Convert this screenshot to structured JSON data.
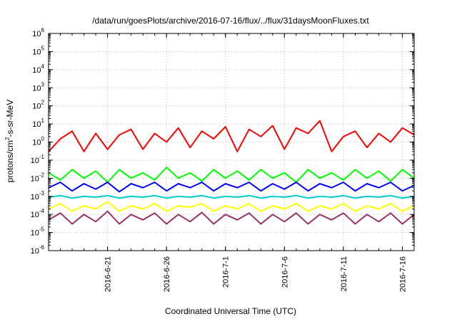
{
  "chart_data": {
    "type": "line",
    "title": "/data/run/goesPlots/archive/2016-07-16/flux/../flux/31daysMoonFluxes.txt",
    "xlabel": "Coordinated Universal Time (UTC)",
    "ylabel": {
      "base": "protons/cm",
      "exp": "2",
      "rest": "-s-sr-MeV"
    },
    "yscale": "log",
    "ylim": [
      1e-06,
      1000000.0
    ],
    "y_ticks": [
      {
        "base": "10",
        "exp": "-6",
        "value": 1e-06
      },
      {
        "base": "10",
        "exp": "-5",
        "value": 1e-05
      },
      {
        "base": "10",
        "exp": "-4",
        "value": 0.0001
      },
      {
        "base": "10",
        "exp": "-3",
        "value": 0.001
      },
      {
        "base": "10",
        "exp": "-2",
        "value": 0.01
      },
      {
        "base": "10",
        "exp": "-1",
        "value": 0.1
      },
      {
        "base": "10",
        "exp": "0",
        "value": 1
      },
      {
        "base": "10",
        "exp": "1",
        "value": 10
      },
      {
        "base": "10",
        "exp": "2",
        "value": 100
      },
      {
        "base": "10",
        "exp": "3",
        "value": 1000
      },
      {
        "base": "10",
        "exp": "4",
        "value": 10000
      },
      {
        "base": "10",
        "exp": "5",
        "value": 100000
      },
      {
        "base": "10",
        "exp": "6",
        "value": 1000000
      }
    ],
    "xlim": [
      "2016-06-16",
      "2016-07-17"
    ],
    "x_ticks": [
      "2016-6-21",
      "2016-6-26",
      "2016-7-1",
      "2016-7-6",
      "2016-7-11",
      "2016-7-16"
    ],
    "grid": true,
    "series": [
      {
        "color": "#ff0000",
        "x": [
          "2016-06-16",
          "2016-06-17",
          "2016-06-18",
          "2016-06-19",
          "2016-06-20",
          "2016-06-21",
          "2016-06-22",
          "2016-06-23",
          "2016-06-24",
          "2016-06-25",
          "2016-06-26",
          "2016-06-27",
          "2016-06-28",
          "2016-06-29",
          "2016-06-30",
          "2016-07-01",
          "2016-07-02",
          "2016-07-03",
          "2016-07-04",
          "2016-07-05",
          "2016-07-06",
          "2016-07-07",
          "2016-07-08",
          "2016-07-09",
          "2016-07-10",
          "2016-07-11",
          "2016-07-12",
          "2016-07-13",
          "2016-07-14",
          "2016-07-15",
          "2016-07-16",
          "2016-07-17"
        ],
        "y": [
          0.3,
          1.5,
          4.0,
          0.3,
          3.0,
          0.4,
          2.5,
          5.0,
          0.4,
          3.0,
          1.0,
          6.0,
          0.5,
          4.0,
          1.5,
          7.0,
          0.3,
          5.0,
          2.0,
          8.0,
          0.4,
          6.0,
          3.0,
          15.0,
          0.3,
          2.0,
          4.0,
          0.5,
          3.0,
          1.0,
          6.0,
          2.5
        ]
      },
      {
        "color": "#00ff00",
        "x": [
          "2016-06-16",
          "2016-06-17",
          "2016-06-18",
          "2016-06-19",
          "2016-06-20",
          "2016-06-21",
          "2016-06-22",
          "2016-06-23",
          "2016-06-24",
          "2016-06-25",
          "2016-06-26",
          "2016-06-27",
          "2016-06-28",
          "2016-06-29",
          "2016-06-30",
          "2016-07-01",
          "2016-07-02",
          "2016-07-03",
          "2016-07-04",
          "2016-07-05",
          "2016-07-06",
          "2016-07-07",
          "2016-07-08",
          "2016-07-09",
          "2016-07-10",
          "2016-07-11",
          "2016-07-12",
          "2016-07-13",
          "2016-07-14",
          "2016-07-15",
          "2016-07-16",
          "2016-07-17"
        ],
        "y": [
          0.02,
          0.008,
          0.03,
          0.01,
          0.025,
          0.006,
          0.03,
          0.01,
          0.02,
          0.008,
          0.04,
          0.01,
          0.02,
          0.007,
          0.03,
          0.01,
          0.025,
          0.008,
          0.03,
          0.01,
          0.02,
          0.006,
          0.03,
          0.01,
          0.02,
          0.008,
          0.03,
          0.01,
          0.025,
          0.007,
          0.03,
          0.01
        ]
      },
      {
        "color": "#0000ff",
        "x": [
          "2016-06-16",
          "2016-06-17",
          "2016-06-18",
          "2016-06-19",
          "2016-06-20",
          "2016-06-21",
          "2016-06-22",
          "2016-06-23",
          "2016-06-24",
          "2016-06-25",
          "2016-06-26",
          "2016-06-27",
          "2016-06-28",
          "2016-06-29",
          "2016-06-30",
          "2016-07-01",
          "2016-07-02",
          "2016-07-03",
          "2016-07-04",
          "2016-07-05",
          "2016-07-06",
          "2016-07-07",
          "2016-07-08",
          "2016-07-09",
          "2016-07-10",
          "2016-07-11",
          "2016-07-12",
          "2016-07-13",
          "2016-07-14",
          "2016-07-15",
          "2016-07-16",
          "2016-07-17"
        ],
        "y": [
          0.003,
          0.006,
          0.002,
          0.005,
          0.0025,
          0.006,
          0.0018,
          0.005,
          0.003,
          0.006,
          0.002,
          0.005,
          0.003,
          0.006,
          0.002,
          0.005,
          0.003,
          0.006,
          0.002,
          0.005,
          0.0025,
          0.006,
          0.002,
          0.005,
          0.003,
          0.006,
          0.002,
          0.005,
          0.003,
          0.006,
          0.002,
          0.004
        ]
      },
      {
        "color": "#00cccc",
        "x": [
          "2016-06-16",
          "2016-06-17",
          "2016-06-18",
          "2016-06-19",
          "2016-06-20",
          "2016-06-21",
          "2016-06-22",
          "2016-06-23",
          "2016-06-24",
          "2016-06-25",
          "2016-06-26",
          "2016-06-27",
          "2016-06-28",
          "2016-06-29",
          "2016-06-30",
          "2016-07-01",
          "2016-07-02",
          "2016-07-03",
          "2016-07-04",
          "2016-07-05",
          "2016-07-06",
          "2016-07-07",
          "2016-07-08",
          "2016-07-09",
          "2016-07-10",
          "2016-07-11",
          "2016-07-12",
          "2016-07-13",
          "2016-07-14",
          "2016-07-15",
          "2016-07-16",
          "2016-07-17"
        ],
        "y": [
          0.0009,
          0.0011,
          0.0008,
          0.001,
          0.0009,
          0.0011,
          0.0008,
          0.001,
          0.0009,
          0.0011,
          0.0008,
          0.001,
          0.0009,
          0.0011,
          0.0008,
          0.001,
          0.0009,
          0.0011,
          0.0008,
          0.001,
          0.0009,
          0.0011,
          0.0008,
          0.001,
          0.0009,
          0.0011,
          0.0008,
          0.001,
          0.0009,
          0.0011,
          0.0008,
          0.001
        ]
      },
      {
        "color": "#ffff00",
        "x": [
          "2016-06-16",
          "2016-06-17",
          "2016-06-18",
          "2016-06-19",
          "2016-06-20",
          "2016-06-21",
          "2016-06-22",
          "2016-06-23",
          "2016-06-24",
          "2016-06-25",
          "2016-06-26",
          "2016-06-27",
          "2016-06-28",
          "2016-06-29",
          "2016-06-30",
          "2016-07-01",
          "2016-07-02",
          "2016-07-03",
          "2016-07-04",
          "2016-07-05",
          "2016-07-06",
          "2016-07-07",
          "2016-07-08",
          "2016-07-09",
          "2016-07-10",
          "2016-07-11",
          "2016-07-12",
          "2016-07-13",
          "2016-07-14",
          "2016-07-15",
          "2016-07-16",
          "2016-07-17"
        ],
        "y": [
          0.0002,
          0.0004,
          0.00015,
          0.0003,
          0.0002,
          0.0005,
          0.00015,
          0.0003,
          0.0002,
          0.0004,
          0.00015,
          0.0003,
          0.00025,
          0.0004,
          0.00015,
          0.0003,
          0.0002,
          0.0004,
          0.00015,
          0.0003,
          0.0002,
          0.0004,
          0.00015,
          0.0003,
          0.0002,
          0.0004,
          0.00015,
          0.0003,
          0.0002,
          0.0004,
          0.00015,
          0.0003
        ]
      },
      {
        "color": "#993366",
        "x": [
          "2016-06-16",
          "2016-06-17",
          "2016-06-18",
          "2016-06-19",
          "2016-06-20",
          "2016-06-21",
          "2016-06-22",
          "2016-06-23",
          "2016-06-24",
          "2016-06-25",
          "2016-06-26",
          "2016-06-27",
          "2016-06-28",
          "2016-06-29",
          "2016-06-30",
          "2016-07-01",
          "2016-07-02",
          "2016-07-03",
          "2016-07-04",
          "2016-07-05",
          "2016-07-06",
          "2016-07-07",
          "2016-07-08",
          "2016-07-09",
          "2016-07-10",
          "2016-07-11",
          "2016-07-12",
          "2016-07-13",
          "2016-07-14",
          "2016-07-15",
          "2016-07-16",
          "2016-07-17"
        ],
        "y": [
          5e-05,
          0.00012,
          3e-05,
          0.0001,
          4e-05,
          0.00015,
          3e-05,
          0.0001,
          5e-05,
          0.00012,
          3e-05,
          0.0001,
          4e-05,
          0.00013,
          3e-05,
          0.0001,
          5e-05,
          0.00012,
          3e-05,
          0.0001,
          4e-05,
          0.00012,
          3e-05,
          0.0001,
          5e-05,
          0.00012,
          3e-05,
          0.0001,
          4e-05,
          0.00012,
          3e-05,
          0.0001
        ]
      }
    ]
  }
}
